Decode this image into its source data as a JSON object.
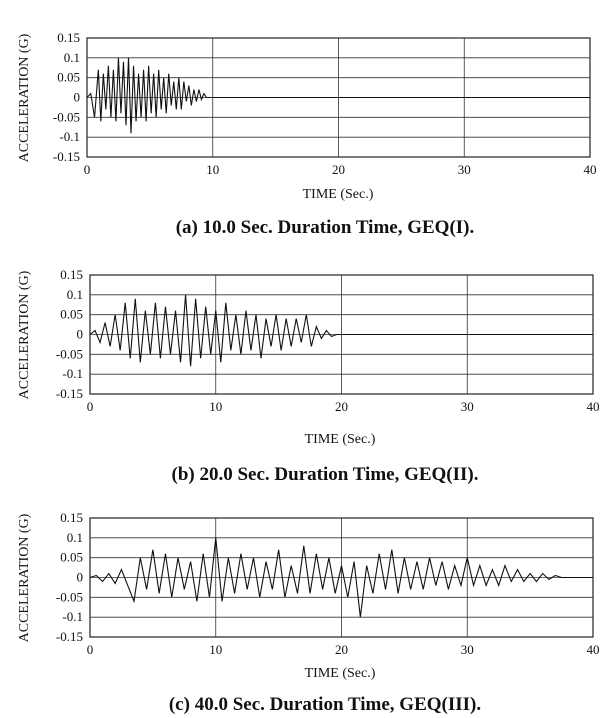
{
  "chart_data": [
    {
      "type": "line",
      "caption": "(a) 10.0 Sec. Duration Time, GEQ(I).",
      "ylabel": "ACCELERATION (G)",
      "xlabel": "TIME (Sec.)",
      "xlim": [
        0,
        40
      ],
      "ylim": [
        -0.15,
        0.15
      ],
      "x_ticks": [
        "0",
        "10",
        "20",
        "30",
        "40"
      ],
      "y_ticks": [
        "0.15",
        "0.1",
        "0.05",
        "0",
        "-0.05",
        "-0.1",
        "-0.15"
      ],
      "grid": true,
      "series": [
        {
          "x": [
            0,
            0.3,
            0.6,
            0.9,
            1.1,
            1.3,
            1.5,
            1.7,
            1.9,
            2.1,
            2.3,
            2.5,
            2.7,
            2.9,
            3.1,
            3.3,
            3.5,
            3.7,
            3.9,
            4.1,
            4.3,
            4.5,
            4.7,
            4.9,
            5.1,
            5.3,
            5.5,
            5.7,
            5.9,
            6.1,
            6.3,
            6.5,
            6.7,
            6.9,
            7.1,
            7.3,
            7.5,
            7.7,
            7.9,
            8.1,
            8.3,
            8.5,
            8.7,
            8.9,
            9.1,
            9.3,
            9.5,
            9.7,
            40
          ],
          "y": [
            0,
            0.01,
            -0.05,
            0.07,
            -0.06,
            0.06,
            -0.03,
            0.08,
            -0.05,
            0.07,
            -0.06,
            0.1,
            -0.04,
            0.09,
            -0.07,
            0.1,
            -0.09,
            0.08,
            -0.06,
            0.06,
            -0.05,
            0.07,
            -0.06,
            0.08,
            -0.04,
            0.06,
            -0.05,
            0.07,
            -0.03,
            0.05,
            -0.04,
            0.06,
            -0.02,
            0.04,
            -0.03,
            0.05,
            -0.03,
            0.04,
            -0.01,
            0.03,
            -0.02,
            0.02,
            -0.01,
            0.02,
            -0.005,
            0.01,
            0,
            0,
            0
          ]
        }
      ]
    },
    {
      "type": "line",
      "caption": "(b) 20.0 Sec. Duration Time, GEQ(II).",
      "ylabel": "ACCELERATION (G)",
      "xlabel": "TIME (Sec.)",
      "xlim": [
        0,
        40
      ],
      "ylim": [
        -0.15,
        0.15
      ],
      "x_ticks": [
        "0",
        "10",
        "20",
        "30",
        "40"
      ],
      "y_ticks": [
        "0.15",
        "0.1",
        "0.05",
        "0",
        "-0.05",
        "-0.1",
        "-0.15"
      ],
      "grid": true,
      "series": [
        {
          "x": [
            0,
            0.4,
            0.8,
            1.2,
            1.6,
            2.0,
            2.4,
            2.8,
            3.2,
            3.6,
            4.0,
            4.4,
            4.8,
            5.2,
            5.6,
            6.0,
            6.4,
            6.8,
            7.2,
            7.6,
            8.0,
            8.4,
            8.8,
            9.2,
            9.6,
            10.0,
            10.4,
            10.8,
            11.2,
            11.6,
            12.0,
            12.4,
            12.8,
            13.2,
            13.6,
            14.0,
            14.4,
            14.8,
            15.2,
            15.6,
            16.0,
            16.4,
            16.8,
            17.2,
            17.6,
            18.0,
            18.4,
            18.8,
            19.2,
            19.6,
            40
          ],
          "y": [
            0,
            0.01,
            -0.02,
            0.03,
            -0.03,
            0.05,
            -0.04,
            0.08,
            -0.06,
            0.09,
            -0.07,
            0.06,
            -0.05,
            0.08,
            -0.06,
            0.07,
            -0.05,
            0.06,
            -0.07,
            0.1,
            -0.08,
            0.09,
            -0.06,
            0.07,
            -0.05,
            0.06,
            -0.07,
            0.08,
            -0.04,
            0.05,
            -0.05,
            0.06,
            -0.04,
            0.05,
            -0.06,
            0.04,
            -0.03,
            0.05,
            -0.04,
            0.04,
            -0.03,
            0.04,
            -0.02,
            0.05,
            -0.03,
            0.02,
            -0.01,
            0.01,
            -0.005,
            0,
            0
          ]
        }
      ]
    },
    {
      "type": "line",
      "caption": "(c) 40.0 Sec. Duration Time, GEQ(III).",
      "ylabel": "ACCELERATION (G)",
      "xlabel": "TIME (Sec.)",
      "xlim": [
        0,
        40
      ],
      "ylim": [
        -0.15,
        0.15
      ],
      "x_ticks": [
        "0",
        "10",
        "20",
        "30",
        "40"
      ],
      "y_ticks": [
        "0.15",
        "0.1",
        "0.05",
        "0",
        "-0.05",
        "-0.1",
        "-0.15"
      ],
      "grid": true,
      "series": [
        {
          "x": [
            0,
            0.5,
            1.0,
            1.5,
            2.0,
            2.5,
            3.0,
            3.5,
            4.0,
            4.5,
            5.0,
            5.5,
            6.0,
            6.5,
            7.0,
            7.5,
            8.0,
            8.5,
            9.0,
            9.5,
            10.0,
            10.5,
            11.0,
            11.5,
            12.0,
            12.5,
            13.0,
            13.5,
            14.0,
            14.5,
            15.0,
            15.5,
            16.0,
            16.5,
            17.0,
            17.5,
            18.0,
            18.5,
            19.0,
            19.5,
            20.0,
            20.5,
            21.0,
            21.5,
            22.0,
            22.5,
            23.0,
            23.5,
            24.0,
            24.5,
            25.0,
            25.5,
            26.0,
            26.5,
            27.0,
            27.5,
            28.0,
            28.5,
            29.0,
            29.5,
            30.0,
            30.5,
            31.0,
            31.5,
            32.0,
            32.5,
            33.0,
            33.5,
            34.0,
            34.5,
            35.0,
            35.5,
            36.0,
            36.5,
            37.0,
            37.5,
            38.0,
            38.5,
            39.0,
            39.5,
            40.0
          ],
          "y": [
            0,
            0.005,
            -0.01,
            0.01,
            -0.015,
            0.02,
            -0.02,
            -0.06,
            0.05,
            -0.03,
            0.07,
            -0.04,
            0.06,
            -0.05,
            0.05,
            -0.03,
            0.04,
            -0.06,
            0.06,
            -0.05,
            0.1,
            -0.06,
            0.05,
            -0.04,
            0.06,
            -0.03,
            0.05,
            -0.05,
            0.04,
            -0.03,
            0.07,
            -0.05,
            0.03,
            -0.04,
            0.08,
            -0.04,
            0.06,
            -0.03,
            0.05,
            -0.04,
            0.03,
            -0.05,
            0.04,
            -0.1,
            0.03,
            -0.04,
            0.06,
            -0.03,
            0.07,
            -0.04,
            0.05,
            -0.03,
            0.04,
            -0.03,
            0.05,
            -0.02,
            0.04,
            -0.03,
            0.03,
            -0.02,
            0.05,
            -0.02,
            0.03,
            -0.02,
            0.02,
            -0.02,
            0.03,
            -0.01,
            0.02,
            -0.01,
            0.01,
            -0.01,
            0.01,
            -0.005,
            0.005,
            0,
            0,
            0,
            0,
            0,
            0
          ]
        }
      ]
    }
  ]
}
